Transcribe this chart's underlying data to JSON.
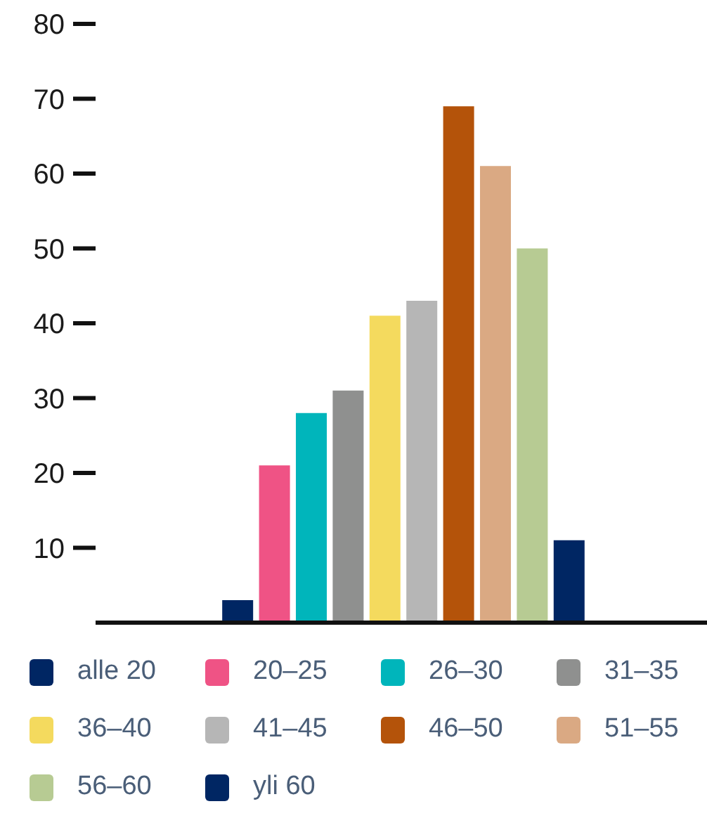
{
  "chart_data": {
    "type": "bar",
    "stacked": true,
    "categories": [
      null,
      null,
      null,
      null,
      null,
      null,
      null,
      null,
      null,
      null
    ],
    "series": [
      {
        "name": "alle 20",
        "color": "#002663",
        "values": [
          3,
          null,
          null,
          null,
          null,
          null,
          null,
          null,
          null,
          null
        ]
      },
      {
        "name": "20–25",
        "color": "#ef5385",
        "values": [
          null,
          21,
          null,
          null,
          null,
          null,
          null,
          null,
          null,
          null
        ]
      },
      {
        "name": "26–30",
        "color": "#00b5bb",
        "values": [
          null,
          null,
          28,
          null,
          null,
          null,
          null,
          null,
          null,
          null
        ]
      },
      {
        "name": "31–35",
        "color": "#8f908f",
        "values": [
          null,
          null,
          null,
          31,
          null,
          null,
          null,
          null,
          null,
          null
        ]
      },
      {
        "name": "36–40",
        "color": "#f4da5e",
        "values": [
          null,
          null,
          null,
          null,
          41,
          null,
          null,
          null,
          null,
          null
        ]
      },
      {
        "name": "41–45",
        "color": "#b6b6b6",
        "values": [
          null,
          null,
          null,
          null,
          null,
          43,
          null,
          null,
          null,
          null
        ]
      },
      {
        "name": "46–50",
        "color": "#b4530a",
        "values": [
          null,
          null,
          null,
          null,
          null,
          null,
          69,
          null,
          null,
          null
        ]
      },
      {
        "name": "51–55",
        "color": "#daa983",
        "values": [
          null,
          null,
          null,
          null,
          null,
          null,
          null,
          61,
          null,
          null
        ]
      },
      {
        "name": "56–60",
        "color": "#b7cb93",
        "values": [
          null,
          null,
          null,
          null,
          null,
          null,
          null,
          null,
          50,
          null
        ]
      },
      {
        "name": "yli 60",
        "color": "#002663",
        "values": [
          null,
          null,
          null,
          null,
          null,
          null,
          null,
          null,
          null,
          11
        ]
      }
    ],
    "ylim": [
      0,
      80
    ],
    "yticks": [
      10,
      20,
      30,
      40,
      50,
      60,
      70,
      80
    ],
    "tick_labels": "y",
    "legend": "bottom"
  }
}
